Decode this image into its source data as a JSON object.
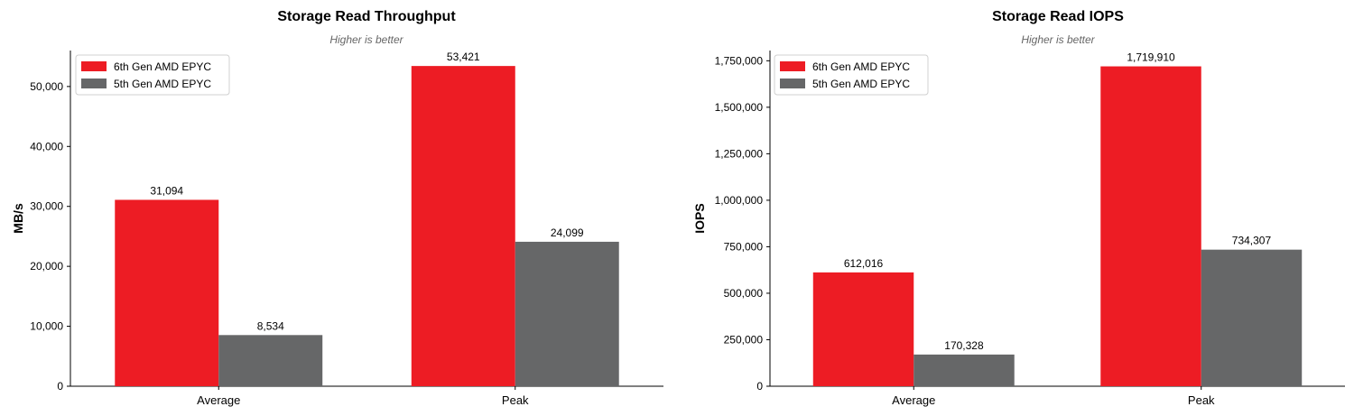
{
  "colors": {
    "series_6th": "#ed1c24",
    "series_5th": "#666768"
  },
  "chart_data": [
    {
      "type": "bar",
      "title": "Storage Read Throughput",
      "subtitle": "Higher is better",
      "xlabel": "",
      "ylabel": "MB/s",
      "categories": [
        "Average",
        "Peak"
      ],
      "series": [
        {
          "name": "6th Gen AMD EPYC",
          "values": [
            31094,
            53421
          ]
        },
        {
          "name": "5th Gen AMD EPYC",
          "values": [
            8534,
            24099
          ]
        }
      ],
      "ylim": [
        0,
        56000
      ],
      "yticks": [
        0,
        10000,
        20000,
        30000,
        40000,
        50000
      ],
      "data_labels": [
        [
          "31,094",
          "53,421"
        ],
        [
          "8,534",
          "24,099"
        ]
      ],
      "legend_position": "top-left",
      "grid": false
    },
    {
      "type": "bar",
      "title": "Storage Read IOPS",
      "subtitle": "Higher is better",
      "xlabel": "",
      "ylabel": "IOPS",
      "categories": [
        "Average",
        "Peak"
      ],
      "series": [
        {
          "name": "6th Gen AMD EPYC",
          "values": [
            612016,
            1719910
          ]
        },
        {
          "name": "5th Gen AMD EPYC",
          "values": [
            170328,
            734307
          ]
        }
      ],
      "ylim": [
        0,
        1805000
      ],
      "yticks": [
        0,
        250000,
        500000,
        750000,
        1000000,
        1250000,
        1500000,
        1750000
      ],
      "data_labels": [
        [
          "612,016",
          "1,719,910"
        ],
        [
          "170,328",
          "734,307"
        ]
      ],
      "legend_position": "top-left",
      "grid": false
    }
  ]
}
